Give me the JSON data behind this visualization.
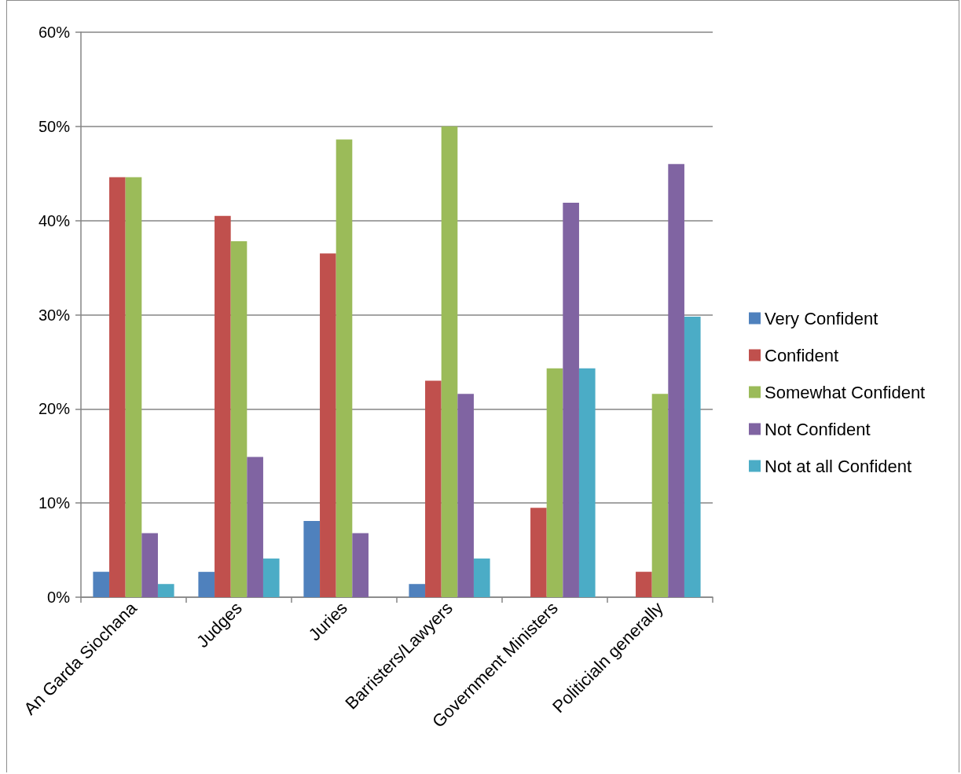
{
  "chart_data": {
    "type": "bar",
    "categories": [
      "An Garda Siochana",
      "Judges",
      "Juries",
      "Barristers/Lawyers",
      "Government Ministers",
      "Politicialn generally"
    ],
    "series": [
      {
        "name": "Very Confident",
        "color": "#4f81bd",
        "values": [
          2.7,
          2.7,
          8.1,
          1.4,
          0,
          0
        ]
      },
      {
        "name": "Confident",
        "color": "#c0504d",
        "values": [
          44.6,
          40.5,
          36.5,
          23.0,
          9.5,
          2.7
        ]
      },
      {
        "name": "Somewhat Confident",
        "color": "#9bbb59",
        "values": [
          44.6,
          37.8,
          48.6,
          50.0,
          24.3,
          21.6
        ]
      },
      {
        "name": "Not Confident",
        "color": "#8064a2",
        "values": [
          6.8,
          14.9,
          6.8,
          21.6,
          41.9,
          46.0
        ]
      },
      {
        "name": "Not at all Confident",
        "color": "#4bacc6",
        "values": [
          1.4,
          4.1,
          0,
          4.1,
          24.3,
          29.8
        ]
      }
    ],
    "ylim": [
      0,
      60
    ],
    "yticks": [
      {
        "value": 0,
        "label": "0%"
      },
      {
        "value": 10,
        "label": "10%"
      },
      {
        "value": 20,
        "label": "20%"
      },
      {
        "value": 30,
        "label": "30%"
      },
      {
        "value": 40,
        "label": "40%"
      },
      {
        "value": 50,
        "label": "50%"
      },
      {
        "value": 60,
        "label": "60%"
      }
    ],
    "grid": "y",
    "legend": "right"
  }
}
